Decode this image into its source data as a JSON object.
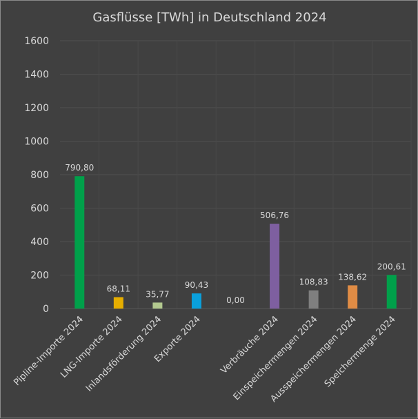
{
  "chart_data": {
    "type": "bar",
    "title": "Gasflüsse [TWh] in Deutschland 2024",
    "xlabel": "",
    "ylabel": "",
    "ylim": [
      0,
      1600
    ],
    "yticks": [
      "0",
      "200",
      "400",
      "600",
      "800",
      "1000",
      "1200",
      "1400",
      "1600"
    ],
    "grid": true,
    "categories": [
      "Pipline-Importe 2024",
      "LNG-Importe 2024",
      "Inlandsförderung 2024",
      "Exporte 2024",
      "",
      "Verbräuche 2024",
      "Einspeichermengen 2024",
      "Ausspeichermengen 2024",
      "Speichermenge 2024"
    ],
    "values": [
      790.8,
      68.11,
      35.77,
      90.43,
      0.0,
      506.76,
      108.83,
      138.62,
      200.61
    ],
    "data_labels": [
      "790,80",
      "68,11",
      "35,77",
      "90,43",
      "0,00",
      "506,76",
      "108,83",
      "138,62",
      "200,61"
    ],
    "colors": [
      "#00a04a",
      "#e6ae00",
      "#b3c98f",
      "#0aa0dc",
      "#404040",
      "#7e5fa0",
      "#7f7f7f",
      "#e08c45",
      "#00a04a"
    ],
    "background": "#404040"
  }
}
